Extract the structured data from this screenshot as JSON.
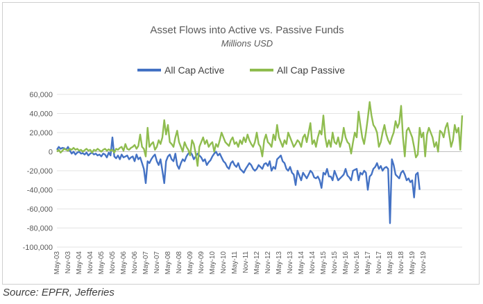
{
  "source": "Source: EPFR, Jefferies",
  "chart_data": {
    "type": "line",
    "title": "Asset Flows into Active vs. Passive Funds",
    "subtitle": "Millions USD",
    "legend_position": "top-center",
    "grid": true,
    "ylim": [
      -100000,
      60000
    ],
    "yticks": [
      60000,
      40000,
      20000,
      0,
      -20000,
      -40000,
      -60000,
      -80000,
      -100000
    ],
    "ytick_labels": [
      "60,000",
      "40,000",
      "20,000",
      "0",
      "-20,000",
      "-40,000",
      "-60,000",
      "-80,000",
      "-100,000"
    ],
    "x_start": "2003-05",
    "x_tick_labels": [
      "May-03",
      "Nov-03",
      "May-04",
      "Nov-04",
      "May-05",
      "Nov-05",
      "May-06",
      "Nov-06",
      "May-07",
      "Nov-07",
      "May-08",
      "Nov-08",
      "May-09",
      "Nov-09",
      "May-10",
      "Nov-10",
      "May-11",
      "Nov-11",
      "May-12",
      "Nov-12",
      "May-13",
      "Nov-13",
      "May-14",
      "Nov-14",
      "May-15",
      "Nov-15",
      "May-16",
      "Nov-16",
      "May-17",
      "Nov-17",
      "May-18",
      "Nov-18",
      "May-19",
      "Nov-19"
    ],
    "series": [
      {
        "name": "All Cap Active",
        "color": "#4472c4",
        "values": [
          2000,
          5000,
          3000,
          4000,
          3500,
          2000,
          5000,
          1000,
          -2000,
          0,
          -3000,
          -1000,
          0,
          -2000,
          -1500,
          -3000,
          -1000,
          -4000,
          -2000,
          -1000,
          -3000,
          -2000,
          -4000,
          -3000,
          -5000,
          -2000,
          -3000,
          -6000,
          -1000,
          -4000,
          15000,
          -5000,
          -7000,
          -4000,
          -8000,
          -3000,
          -6000,
          -5000,
          -4000,
          -8000,
          -6000,
          -5000,
          -10000,
          -3000,
          -8000,
          -6000,
          -12000,
          -18000,
          -33000,
          -10000,
          -12000,
          -8000,
          -5000,
          -3000,
          -10000,
          -14000,
          -8000,
          -20000,
          -33000,
          -10000,
          -5000,
          -3000,
          -8000,
          -10000,
          -2000,
          -14000,
          -18000,
          -12000,
          -8000,
          -10000,
          -5000,
          -2000,
          0,
          -3000,
          -8000,
          -5000,
          -2000,
          -4000,
          -6000,
          -10000,
          -8000,
          -14000,
          -11000,
          -9000,
          -5000,
          -2000,
          0,
          -4000,
          -2000,
          -6000,
          -10000,
          -12000,
          -16000,
          -18000,
          -12000,
          -10000,
          -14000,
          -16000,
          -12000,
          -18000,
          -20000,
          -22000,
          -18000,
          -15000,
          -12000,
          -14000,
          -18000,
          -20000,
          -18000,
          -14000,
          -16000,
          -18000,
          -13000,
          -12000,
          -15000,
          -10000,
          -20000,
          -16000,
          -18000,
          -8000,
          -6000,
          -4000,
          -10000,
          -12000,
          -18000,
          -20000,
          -16000,
          -22000,
          -24000,
          -35000,
          -20000,
          -25000,
          -30000,
          -22000,
          -25000,
          -28000,
          -24000,
          -20000,
          -22000,
          -27000,
          -28000,
          -26000,
          -30000,
          -38000,
          -22000,
          -24000,
          -18000,
          -26000,
          -26000,
          -30000,
          -20000,
          -25000,
          -30000,
          -28000,
          -26000,
          -24000,
          -18000,
          -25000,
          -27000,
          -30000,
          -20000,
          -19000,
          -18000,
          -30000,
          -22000,
          -24000,
          -20000,
          -22000,
          -40000,
          -26000,
          -24000,
          -18000,
          -16000,
          -12000,
          -18000,
          -15000,
          -20000,
          -17000,
          -16000,
          -18000,
          -75000,
          -8000,
          -14000,
          -24000,
          -26000,
          -28000,
          -22000,
          -20000,
          -24000,
          -30000,
          -28000,
          -32000,
          -30000,
          -48000,
          -24000,
          -22000,
          -40000
        ]
      },
      {
        "name": "All Cap Passive",
        "color": "#8fbc4f",
        "values": [
          0,
          2000,
          -1000,
          1000,
          3000,
          2000,
          1000,
          3000,
          2000,
          4000,
          2000,
          3000,
          1000,
          2000,
          0,
          1500,
          3000,
          1000,
          2000,
          -1000,
          2000,
          1000,
          3000,
          1500,
          0,
          2000,
          3000,
          1000,
          2500,
          1000,
          2000,
          -1000,
          3000,
          2000,
          4000,
          5000,
          1000,
          8000,
          3000,
          2000,
          4000,
          5000,
          7000,
          3000,
          6000,
          18000,
          5000,
          3000,
          -5000,
          25000,
          5000,
          8000,
          10000,
          2000,
          5000,
          12000,
          8000,
          15000,
          33000,
          18000,
          28000,
          10000,
          8000,
          5000,
          15000,
          22000,
          10000,
          5000,
          0,
          10000,
          5000,
          2000,
          -4000,
          12000,
          8000,
          -2000,
          -15000,
          5000,
          10000,
          15000,
          8000,
          12000,
          5000,
          8000,
          10000,
          0,
          8000,
          5000,
          12000,
          20000,
          15000,
          10000,
          8000,
          6000,
          12000,
          15000,
          8000,
          10000,
          5000,
          12000,
          8000,
          15000,
          10000,
          18000,
          12000,
          8000,
          5000,
          10000,
          20000,
          8000,
          5000,
          -5000,
          12000,
          18000,
          10000,
          8000,
          5000,
          18000,
          12000,
          28000,
          15000,
          10000,
          5000,
          12000,
          8000,
          20000,
          15000,
          10000,
          5000,
          8000,
          12000,
          10000,
          5000,
          15000,
          18000,
          10000,
          20000,
          30000,
          8000,
          12000,
          5000,
          15000,
          22000,
          18000,
          38000,
          15000,
          5000,
          12000,
          5000,
          20000,
          10000,
          8000,
          15000,
          5000,
          12000,
          25000,
          15000,
          10000,
          8000,
          -2000,
          10000,
          20000,
          15000,
          42000,
          28000,
          15000,
          8000,
          20000,
          35000,
          52000,
          38000,
          28000,
          25000,
          20000,
          5000,
          10000,
          20000,
          28000,
          18000,
          12000,
          8000,
          15000,
          20000,
          32000,
          25000,
          30000,
          48000,
          15000,
          -5000,
          22000,
          25000,
          20000,
          15000,
          5000,
          -6000,
          -3000,
          25000,
          15000,
          20000,
          -5000,
          18000,
          25000,
          20000,
          15000,
          5000,
          10000,
          0,
          22000,
          20000,
          15000,
          25000,
          30000,
          18000,
          5000,
          12000,
          28000,
          20000,
          25000,
          2000,
          38000
        ]
      }
    ]
  }
}
